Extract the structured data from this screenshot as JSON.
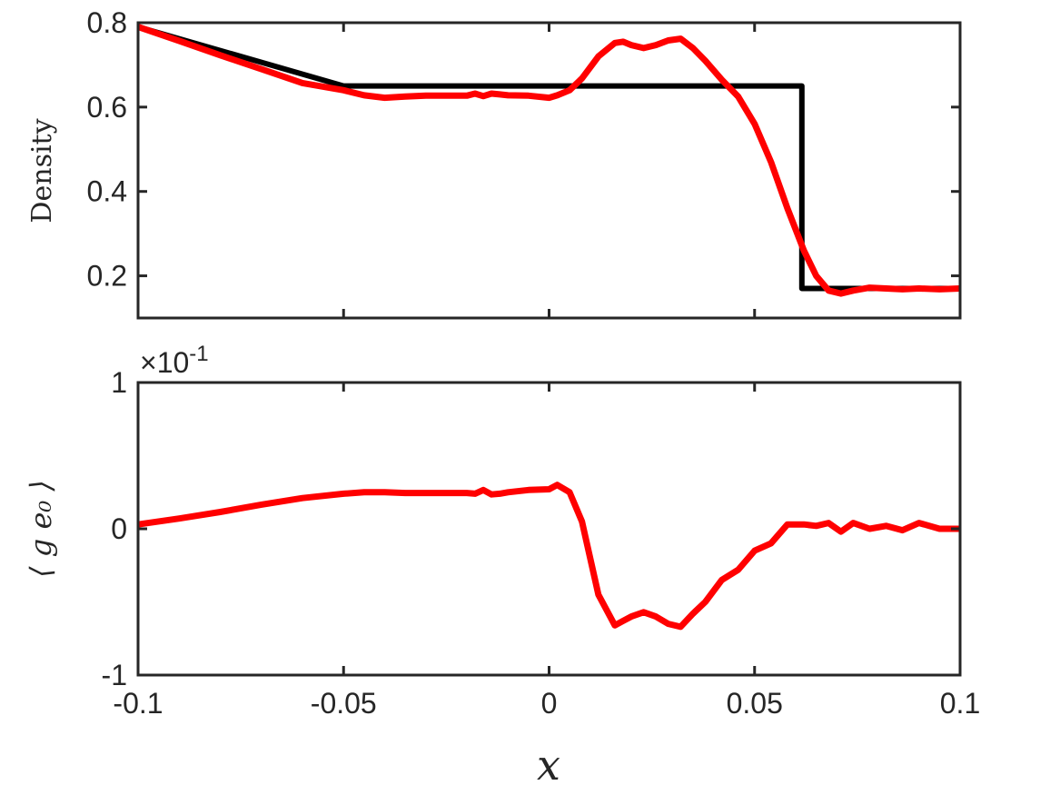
{
  "chart_data": [
    {
      "type": "line",
      "ylabel": "Density",
      "xlim": [
        -0.1,
        0.1
      ],
      "ylim": [
        0.1,
        0.8
      ],
      "xticks": [
        -0.1,
        -0.05,
        0,
        0.05,
        0.1
      ],
      "yticks": [
        0.2,
        0.4,
        0.6,
        0.8
      ],
      "ytick_labels": [
        "0.2",
        "0.4",
        "0.6",
        "0.8"
      ],
      "grid": false,
      "series": [
        {
          "color": "#000000",
          "x": [
            -0.1,
            -0.05,
            0.0615,
            0.0615,
            0.1
          ],
          "y": [
            0.79,
            0.65,
            0.65,
            0.17,
            0.17
          ]
        },
        {
          "color": "#ff0000",
          "x": [
            -0.1,
            -0.09,
            -0.08,
            -0.07,
            -0.06,
            -0.05,
            -0.045,
            -0.04,
            -0.035,
            -0.03,
            -0.025,
            -0.02,
            -0.018,
            -0.016,
            -0.014,
            -0.012,
            -0.01,
            -0.005,
            0.0,
            0.002,
            0.005,
            0.008,
            0.012,
            0.016,
            0.018,
            0.02,
            0.023,
            0.026,
            0.029,
            0.032,
            0.035,
            0.038,
            0.042,
            0.046,
            0.05,
            0.054,
            0.058,
            0.062,
            0.065,
            0.068,
            0.071,
            0.074,
            0.078,
            0.082,
            0.086,
            0.09,
            0.095,
            0.1
          ],
          "y": [
            0.79,
            0.757,
            0.723,
            0.69,
            0.657,
            0.64,
            0.628,
            0.622,
            0.625,
            0.627,
            0.627,
            0.627,
            0.632,
            0.626,
            0.632,
            0.63,
            0.628,
            0.627,
            0.622,
            0.628,
            0.64,
            0.668,
            0.72,
            0.752,
            0.755,
            0.747,
            0.74,
            0.747,
            0.758,
            0.762,
            0.74,
            0.71,
            0.665,
            0.625,
            0.56,
            0.47,
            0.36,
            0.26,
            0.2,
            0.165,
            0.158,
            0.165,
            0.172,
            0.17,
            0.168,
            0.17,
            0.168,
            0.17
          ]
        }
      ]
    },
    {
      "type": "line",
      "ylabel": "⟨ g e₀ ⟩",
      "xlabel": "x",
      "exponent_label": "×10",
      "exponent_power": "-1",
      "xlim": [
        -0.1,
        0.1
      ],
      "ylim": [
        -1,
        1
      ],
      "xticks": [
        -0.1,
        -0.05,
        0,
        0.05,
        0.1
      ],
      "xtick_labels": [
        "-0.1",
        "-0.05",
        "0",
        "0.05",
        "0.1"
      ],
      "yticks": [
        -1,
        0,
        1
      ],
      "ytick_labels": [
        "-1",
        "0",
        "1"
      ],
      "grid": false,
      "series": [
        {
          "color": "#ff0000",
          "x": [
            -0.1,
            -0.09,
            -0.08,
            -0.07,
            -0.06,
            -0.05,
            -0.045,
            -0.04,
            -0.035,
            -0.03,
            -0.025,
            -0.02,
            -0.018,
            -0.016,
            -0.014,
            -0.012,
            -0.01,
            -0.005,
            0.0,
            0.002,
            0.005,
            0.008,
            0.012,
            0.016,
            0.018,
            0.02,
            0.023,
            0.026,
            0.029,
            0.032,
            0.035,
            0.038,
            0.042,
            0.046,
            0.05,
            0.054,
            0.058,
            0.062,
            0.065,
            0.068,
            0.071,
            0.074,
            0.078,
            0.082,
            0.086,
            0.09,
            0.095,
            0.1
          ],
          "y": [
            0.03,
            0.07,
            0.115,
            0.165,
            0.21,
            0.24,
            0.25,
            0.25,
            0.245,
            0.245,
            0.245,
            0.245,
            0.24,
            0.265,
            0.235,
            0.24,
            0.25,
            0.265,
            0.27,
            0.3,
            0.25,
            0.05,
            -0.45,
            -0.66,
            -0.63,
            -0.6,
            -0.57,
            -0.6,
            -0.65,
            -0.67,
            -0.58,
            -0.5,
            -0.35,
            -0.28,
            -0.15,
            -0.1,
            0.03,
            0.03,
            0.02,
            0.04,
            -0.02,
            0.04,
            0.0,
            0.02,
            -0.01,
            0.04,
            0.0,
            0.0
          ]
        }
      ]
    }
  ]
}
